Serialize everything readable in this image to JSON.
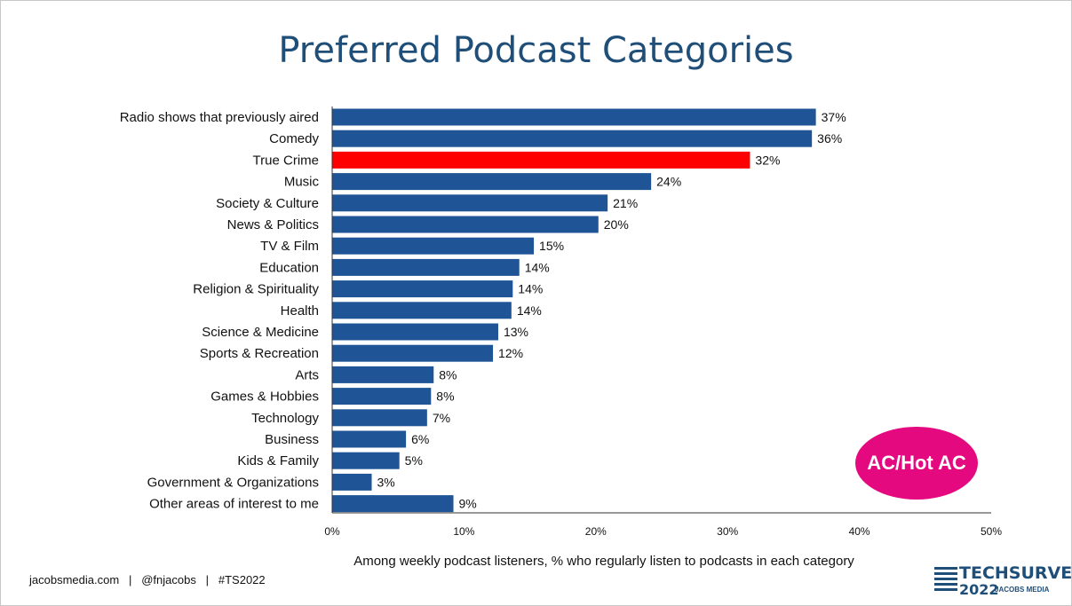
{
  "chart_data": {
    "type": "bar",
    "orientation": "horizontal",
    "title": "Preferred Podcast Categories",
    "xlabel": "Among weekly podcast listeners, % who regularly listen to podcasts in each category",
    "ylabel": "",
    "xlim": [
      0,
      50
    ],
    "xticks": [
      "0%",
      "10%",
      "20%",
      "30%",
      "40%",
      "50%"
    ],
    "grid": false,
    "categories": [
      "Radio shows that previously aired",
      "Comedy",
      "True Crime",
      "Music",
      "Society & Culture",
      "News & Politics",
      "TV & Film",
      "Education",
      "Religion & Spirituality",
      "Health",
      "Science & Medicine",
      "Sports & Recreation",
      "Arts",
      "Games & Hobbies",
      "Technology",
      "Business",
      "Kids & Family",
      "Government & Organizations",
      "Other areas of interest to me"
    ],
    "values": [
      36.7,
      36.4,
      31.7,
      24.2,
      20.9,
      20.2,
      15.3,
      14.2,
      13.7,
      13.6,
      12.6,
      12.2,
      7.7,
      7.5,
      7.2,
      5.6,
      5.1,
      3.0,
      9.2
    ],
    "value_labels": [
      "37%",
      "36%",
      "32%",
      "24%",
      "21%",
      "20%",
      "15%",
      "14%",
      "14%",
      "14%",
      "13%",
      "12%",
      "8%",
      "8%",
      "7%",
      "6%",
      "5%",
      "3%",
      "9%"
    ],
    "highlight_index": 2,
    "colors": {
      "bar": "#1f5596",
      "highlight": "#ff0000"
    }
  },
  "badge": {
    "text": "AC/Hot AC",
    "color": "#e5097f"
  },
  "footer": {
    "text": "jacobsmedia.com   |   @fnjacobs   |   #TS2022"
  },
  "logo": {
    "line1": "TECHSURVEY",
    "year": "2022",
    "sub": "JACOBS MEDIA"
  }
}
